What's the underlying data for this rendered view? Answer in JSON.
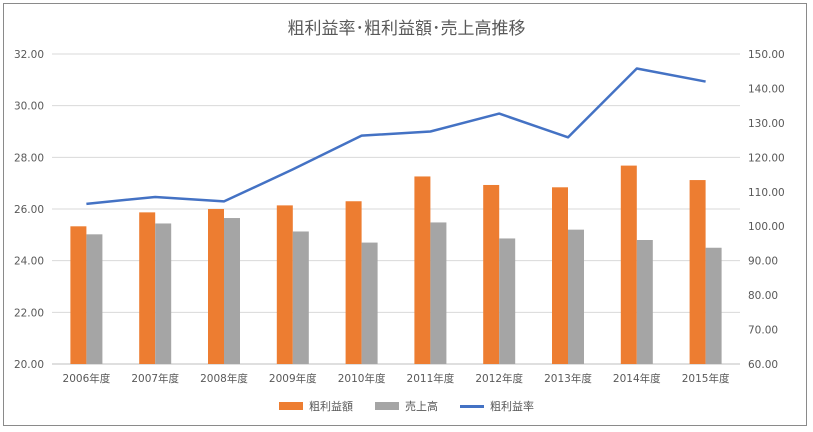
{
  "chart_data": {
    "type": "bar",
    "title": "粗利益率･粗利益額･売上高推移",
    "categories": [
      "2006年度",
      "2007年度",
      "2008年度",
      "2009年度",
      "2010年度",
      "2011年度",
      "2012年度",
      "2013年度",
      "2014年度",
      "2015年度"
    ],
    "series": [
      {
        "name": "粗利益額",
        "type": "bar",
        "axis": "left",
        "color": "#ED7D31",
        "values": [
          25.33,
          25.87,
          26.0,
          26.14,
          26.3,
          27.26,
          26.93,
          26.84,
          27.68,
          27.12
        ]
      },
      {
        "name": "売上高",
        "type": "bar",
        "axis": "left",
        "color": "#A5A5A5",
        "values": [
          25.02,
          25.44,
          25.65,
          25.13,
          24.7,
          25.48,
          24.86,
          25.2,
          24.8,
          24.5
        ]
      },
      {
        "name": "粗利益率",
        "type": "line",
        "axis": "right",
        "color": "#4472C4",
        "values": [
          106.5,
          108.5,
          107.2,
          116.5,
          126.3,
          127.5,
          132.7,
          125.8,
          145.8,
          142.0
        ]
      }
    ],
    "ylim_left": [
      20,
      32
    ],
    "ylim_right": [
      60,
      150
    ],
    "yticks_left": [
      "20.00",
      "22.00",
      "24.00",
      "26.00",
      "28.00",
      "30.00",
      "32.00"
    ],
    "yticks_right": [
      "60.00",
      "70.00",
      "80.00",
      "90.00",
      "100.00",
      "110.00",
      "120.00",
      "130.00",
      "140.00",
      "150.00"
    ],
    "grid": true,
    "legend": "bottom"
  }
}
